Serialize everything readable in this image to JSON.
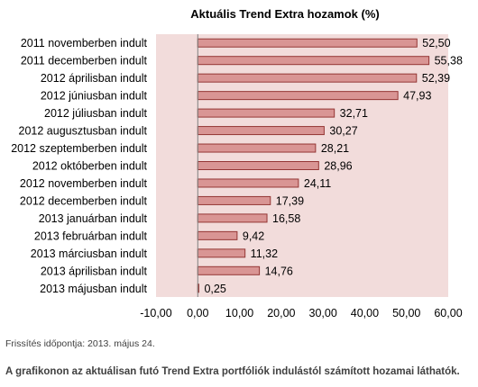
{
  "chart_data": {
    "type": "bar",
    "orientation": "horizontal",
    "title": "Aktuális Trend Extra hozamok (%)",
    "categories": [
      "2011 novemberben indult",
      "2011 decemberben indult",
      "2012 áprilisban indult",
      "2012 júniusban indult",
      "2012 júliusban indult",
      "2012 augusztusban indult",
      "2012 szeptemberben indult",
      "2012 októberben indult",
      "2012 novemberben indult",
      "2012 decemberben indult",
      "2013 januárban indult",
      "2013 februárban indult",
      "2013 márciusban indult",
      "2013 áprilisban indult",
      "2013 májusban indult"
    ],
    "values": [
      52.5,
      55.38,
      52.39,
      47.93,
      32.71,
      30.27,
      28.21,
      28.96,
      24.11,
      17.39,
      16.58,
      9.42,
      11.32,
      14.76,
      0.25
    ],
    "value_labels": [
      "52,50",
      "55,38",
      "52,39",
      "47,93",
      "32,71",
      "30,27",
      "28,21",
      "28,96",
      "24,11",
      "17,39",
      "16,58",
      "9,42",
      "11,32",
      "14,76",
      "0,25"
    ],
    "xlim": [
      -10,
      60
    ],
    "xticks": [
      -10,
      0,
      10,
      20,
      30,
      40,
      50,
      60
    ],
    "xtick_labels": [
      "-10,00",
      "0,00",
      "10,00",
      "20,00",
      "30,00",
      "40,00",
      "50,00",
      "60,00"
    ],
    "plot_background": "#f2dcdb",
    "bar_fill": "#d99594",
    "bar_stroke": "#943634",
    "grid": false,
    "legend": "none"
  },
  "footnote": "Frissítés időpontja: 2013. május 24.",
  "caption": "A grafikonon az aktuálisan futó Trend Extra portfóliók indulástól számított hozamai láthatók."
}
